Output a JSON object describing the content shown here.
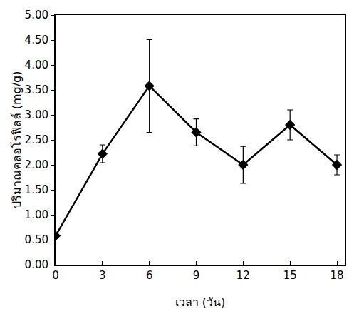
{
  "chart_data": {
    "type": "line",
    "x_label": "เวลา (วัน)",
    "y_label": "ปริมาณคลอโรฟิลล์ (mg/g)",
    "x": [
      0,
      3,
      6,
      9,
      12,
      15,
      18
    ],
    "series": [
      {
        "values": [
          0.58,
          2.22,
          3.58,
          2.65,
          2.0,
          2.8,
          2.0
        ],
        "error": [
          0.05,
          0.18,
          0.93,
          0.27,
          0.37,
          0.3,
          0.2
        ],
        "color": "#000000",
        "marker": "diamond",
        "line_style": "solid"
      }
    ],
    "xlim": [
      0,
      18.5
    ],
    "xticks": [
      0,
      3,
      6,
      9,
      12,
      15,
      18
    ],
    "ylim": [
      0,
      5
    ],
    "yticks": [
      {
        "value": 0,
        "label": "0.00"
      },
      {
        "value": 0.5,
        "label": "0.50"
      },
      {
        "value": 1,
        "label": "1.00"
      },
      {
        "value": 1.5,
        "label": "1.50"
      },
      {
        "value": 2,
        "label": "2.00"
      },
      {
        "value": 2.5,
        "label": "2.50"
      },
      {
        "value": 3,
        "label": "3.00"
      },
      {
        "value": 3.5,
        "label": "3.50"
      },
      {
        "value": 4,
        "label": "4.00"
      },
      {
        "value": 4.5,
        "label": "4.50"
      },
      {
        "value": 5,
        "label": "5.00"
      }
    ],
    "grid": false
  }
}
